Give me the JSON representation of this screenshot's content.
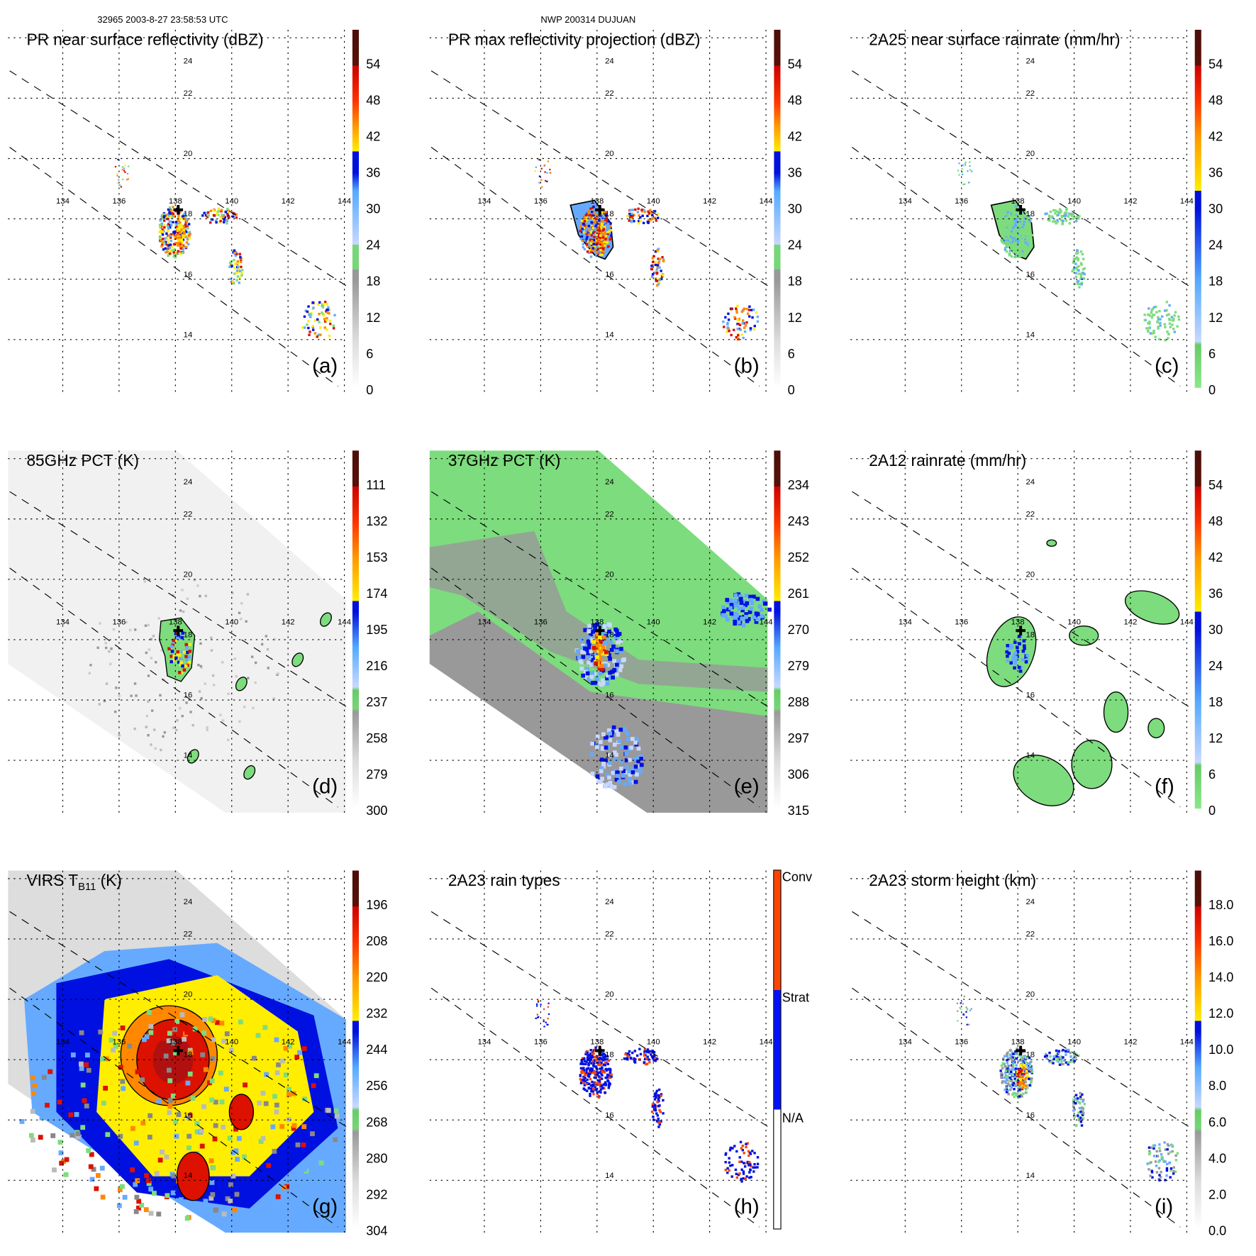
{
  "header": {
    "left": "32965 2003-8-27 23:58:53 UTC",
    "center": "NWP 200314 DUJUAN"
  },
  "grid": {
    "lon_labels": [
      "134",
      "136",
      "138",
      "140",
      "142",
      "144"
    ],
    "lat_labels": [
      "24",
      "22",
      "20",
      "18",
      "16",
      "14"
    ]
  },
  "storm_center": {
    "lon": 138.1,
    "lat": 18.3
  },
  "panels": [
    {
      "id": "a",
      "title": "PR near surface reflectivity (dBZ)",
      "letter": "(a)",
      "palette": "refl",
      "ticks": [
        "0",
        "6",
        "12",
        "18",
        "24",
        "30",
        "36",
        "42",
        "48",
        "54"
      ],
      "style": "radar"
    },
    {
      "id": "b",
      "title": "PR max reflectivity projection (dBZ)",
      "letter": "(b)",
      "palette": "refl",
      "ticks": [
        "0",
        "6",
        "12",
        "18",
        "24",
        "30",
        "36",
        "42",
        "48",
        "54"
      ],
      "style": "radar-contour"
    },
    {
      "id": "c",
      "title": "2A25 near surface rainrate (mm/hr)",
      "letter": "(c)",
      "palette": "rain",
      "ticks": [
        "0",
        "6",
        "12",
        "18",
        "24",
        "30",
        "36",
        "42",
        "48",
        "54"
      ],
      "style": "rain"
    },
    {
      "id": "d",
      "title": "85GHz PCT (K)",
      "letter": "(d)",
      "palette": "pct",
      "ticks": [
        "300",
        "279",
        "258",
        "237",
        "216",
        "195",
        "174",
        "153",
        "132",
        "111"
      ],
      "style": "pct85"
    },
    {
      "id": "e",
      "title": "37GHz PCT (K)",
      "letter": "(e)",
      "palette": "pct",
      "ticks": [
        "315",
        "306",
        "297",
        "288",
        "279",
        "270",
        "261",
        "252",
        "243",
        "234"
      ],
      "style": "pct37"
    },
    {
      "id": "f",
      "title": "2A12 rainrate (mm/hr)",
      "letter": "(f)",
      "palette": "rain",
      "ticks": [
        "0",
        "6",
        "12",
        "18",
        "24",
        "30",
        "36",
        "42",
        "48",
        "54"
      ],
      "style": "tmi"
    },
    {
      "id": "g",
      "title_main": "VIRS T",
      "title_sub": "B11",
      "title_tail": " (K)",
      "letter": "(g)",
      "palette": "pct",
      "ticks": [
        "304",
        "292",
        "280",
        "268",
        "256",
        "244",
        "232",
        "220",
        "208",
        "196"
      ],
      "style": "virs"
    },
    {
      "id": "h",
      "title": "2A23 rain types",
      "letter": "(h)",
      "palette": "types",
      "ticks": [
        "N/A",
        "Strat",
        "Conv"
      ],
      "style": "types"
    },
    {
      "id": "i",
      "title": "2A23 storm height (km)",
      "letter": "(i)",
      "palette": "height",
      "ticks": [
        "0.0",
        "2.0",
        "4.0",
        "6.0",
        "8.0",
        "10.0",
        "12.0",
        "14.0",
        "16.0",
        "18.0"
      ],
      "style": "height"
    }
  ],
  "colors": {
    "green": "#7ddc7d",
    "lightblue": "#66aaff",
    "blue": "#0010e0",
    "yellow": "#ffee00",
    "orange": "#ff8800",
    "red": "#dd1100",
    "darkred": "#5a1008",
    "gray": "#999999",
    "conv": "#ff4400",
    "strat": "#0010ff"
  }
}
